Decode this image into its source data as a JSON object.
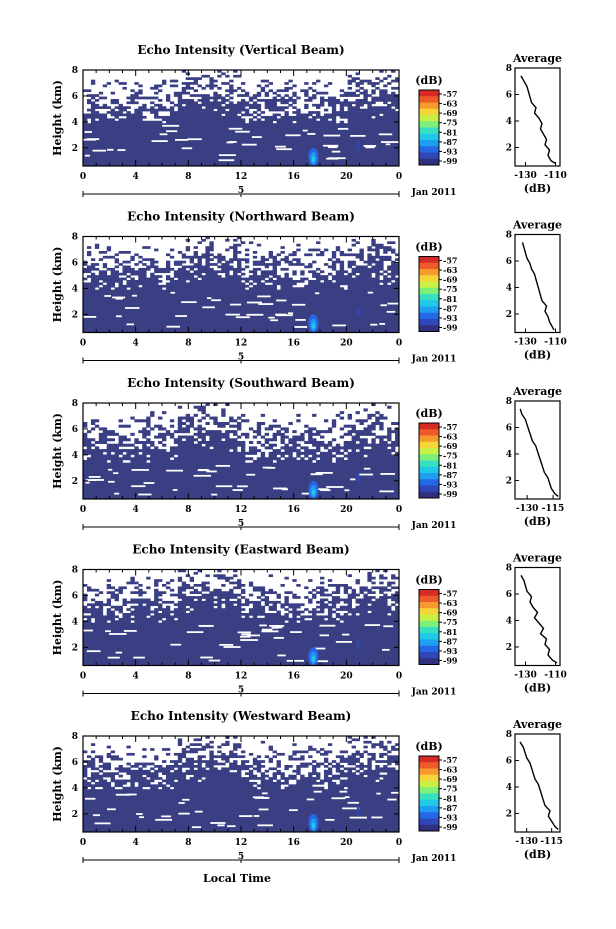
{
  "figure": {
    "xlabel": "Local Time",
    "date_label": "Jan 2011",
    "second_axis_label": "5"
  },
  "colors": {
    "echo_fill": "#3a3f84",
    "background": "#ffffff",
    "colormap": [
      "#30317e",
      "#2f47b8",
      "#2568e6",
      "#1d9ef0",
      "#21c8e8",
      "#39e0c0",
      "#7ef07a",
      "#c8f047",
      "#f5d638",
      "#f79a2e",
      "#ef5a2a",
      "#d62a26"
    ]
  },
  "chart_data": [
    {
      "type": "heatmap",
      "title": "Echo Intensity (Vertical Beam)",
      "ylabel": "Height (km)",
      "xlabel": "Local Time",
      "x_ticks": [
        "0",
        "4",
        "8",
        "12",
        "16",
        "20",
        "0"
      ],
      "y_ticks": [
        "2",
        "4",
        "6",
        "8"
      ],
      "xlim": [
        0,
        24
      ],
      "ylim": [
        0.6,
        8
      ],
      "colorbar": {
        "label": "(dB)",
        "ticks": [
          "-57",
          "-63",
          "-69",
          "-75",
          "-81",
          "-87",
          "-93",
          "-99"
        ]
      },
      "profile": {
        "title": "Average",
        "xlabel": "(dB)",
        "x_ticks": [
          "-130",
          "-110"
        ],
        "xlim": [
          -137,
          -107
        ],
        "y_ticks": [
          "2",
          "4",
          "6",
          "8"
        ],
        "height_km": [
          0.8,
          1.0,
          1.4,
          1.8,
          2.2,
          2.6,
          3.0,
          3.4,
          3.8,
          4.2,
          4.6,
          5.0,
          5.4,
          5.8,
          6.2,
          6.6,
          7.0,
          7.4
        ],
        "db": [
          -110,
          -113,
          -115,
          -114,
          -117,
          -116,
          -118,
          -120,
          -119,
          -121,
          -124,
          -123,
          -126,
          -127,
          -128,
          -129,
          -131,
          -133
        ]
      }
    },
    {
      "type": "heatmap",
      "title": "Echo Intensity (Northward Beam)",
      "ylabel": "Height (km)",
      "xlabel": "Local Time",
      "x_ticks": [
        "0",
        "4",
        "8",
        "12",
        "16",
        "20",
        "0"
      ],
      "y_ticks": [
        "2",
        "4",
        "6",
        "8"
      ],
      "xlim": [
        0,
        24
      ],
      "ylim": [
        0.6,
        8
      ],
      "colorbar": {
        "label": "(dB)",
        "ticks": [
          "-57",
          "-63",
          "-69",
          "-75",
          "-81",
          "-87",
          "-93",
          "-99"
        ]
      },
      "profile": {
        "title": "Average",
        "xlabel": "(dB)",
        "x_ticks": [
          "-130",
          "-110"
        ],
        "xlim": [
          -137,
          -107
        ],
        "y_ticks": [
          "2",
          "4",
          "6",
          "8"
        ],
        "height_km": [
          0.8,
          1.0,
          1.4,
          1.8,
          2.2,
          2.6,
          3.0,
          3.4,
          3.8,
          4.2,
          4.6,
          5.0,
          5.4,
          5.8,
          6.2,
          6.6,
          7.0,
          7.4
        ],
        "db": [
          -111,
          -112,
          -114,
          -115,
          -117,
          -116,
          -119,
          -120,
          -121,
          -122,
          -123,
          -124,
          -126,
          -127,
          -129,
          -130,
          -131,
          -132
        ]
      }
    },
    {
      "type": "heatmap",
      "title": "Echo Intensity (Southward Beam)",
      "ylabel": "Height (km)",
      "xlabel": "Local Time",
      "x_ticks": [
        "0",
        "4",
        "8",
        "12",
        "16",
        "20",
        "0"
      ],
      "y_ticks": [
        "2",
        "4",
        "6",
        "8"
      ],
      "xlim": [
        0,
        24
      ],
      "ylim": [
        0.6,
        8
      ],
      "colorbar": {
        "label": "(dB)",
        "ticks": [
          "-57",
          "-63",
          "-69",
          "-75",
          "-81",
          "-87",
          "-93",
          "-99"
        ]
      },
      "profile": {
        "title": "Average",
        "xlabel": "(dB)",
        "x_ticks": [
          "-130",
          "-115"
        ],
        "xlim": [
          -137,
          -111
        ],
        "y_ticks": [
          "2",
          "4",
          "6",
          "8"
        ],
        "height_km": [
          0.8,
          1.0,
          1.4,
          1.8,
          2.2,
          2.6,
          3.0,
          3.4,
          3.8,
          4.2,
          4.6,
          5.0,
          5.4,
          5.8,
          6.2,
          6.6,
          7.0,
          7.4
        ],
        "db": [
          -112,
          -114,
          -116,
          -117,
          -118,
          -120,
          -121,
          -122,
          -123,
          -124,
          -125,
          -127,
          -128,
          -129,
          -130,
          -131,
          -133,
          -134
        ]
      }
    },
    {
      "type": "heatmap",
      "title": "Echo Intensity (Eastward Beam)",
      "ylabel": "Height (km)",
      "xlabel": "Local Time",
      "x_ticks": [
        "0",
        "4",
        "8",
        "12",
        "16",
        "20",
        "0"
      ],
      "y_ticks": [
        "2",
        "4",
        "6",
        "8"
      ],
      "xlim": [
        0,
        24
      ],
      "ylim": [
        0.6,
        8
      ],
      "colorbar": {
        "label": "(dB)",
        "ticks": [
          "-57",
          "-63",
          "-69",
          "-75",
          "-81",
          "-87",
          "-93",
          "-99"
        ]
      },
      "profile": {
        "title": "Average",
        "xlabel": "(dB)",
        "x_ticks": [
          "-130",
          "-110"
        ],
        "xlim": [
          -137,
          -107
        ],
        "y_ticks": [
          "2",
          "4",
          "6",
          "8"
        ],
        "height_km": [
          0.8,
          1.0,
          1.4,
          1.8,
          2.2,
          2.6,
          3.0,
          3.4,
          3.8,
          4.2,
          4.6,
          5.0,
          5.4,
          5.8,
          6.2,
          6.6,
          7.0,
          7.4
        ],
        "db": [
          -109,
          -112,
          -115,
          -114,
          -117,
          -116,
          -120,
          -118,
          -121,
          -124,
          -122,
          -125,
          -127,
          -126,
          -129,
          -130,
          -131,
          -133
        ]
      }
    },
    {
      "type": "heatmap",
      "title": "Echo Intensity (Westward Beam)",
      "ylabel": "Height (km)",
      "xlabel": "Local Time",
      "x_ticks": [
        "0",
        "4",
        "8",
        "12",
        "16",
        "20",
        "0"
      ],
      "y_ticks": [
        "2",
        "4",
        "6",
        "8"
      ],
      "xlim": [
        0,
        24
      ],
      "ylim": [
        0.6,
        8
      ],
      "colorbar": {
        "label": "(dB)",
        "ticks": [
          "-57",
          "-63",
          "-69",
          "-75",
          "-81",
          "-87",
          "-93",
          "-99"
        ]
      },
      "profile": {
        "title": "Average",
        "xlabel": "(dB)",
        "x_ticks": [
          "-130",
          "-115"
        ],
        "xlim": [
          -137,
          -110
        ],
        "y_ticks": [
          "2",
          "4",
          "6",
          "8"
        ],
        "height_km": [
          0.8,
          1.0,
          1.4,
          1.8,
          2.2,
          2.6,
          3.0,
          3.4,
          3.8,
          4.2,
          4.6,
          5.0,
          5.4,
          5.8,
          6.2,
          6.6,
          7.0,
          7.4
        ],
        "db": [
          -111,
          -113,
          -115,
          -117,
          -116,
          -119,
          -120,
          -121,
          -122,
          -123,
          -125,
          -126,
          -127,
          -128,
          -130,
          -131,
          -132,
          -134
        ]
      }
    }
  ]
}
